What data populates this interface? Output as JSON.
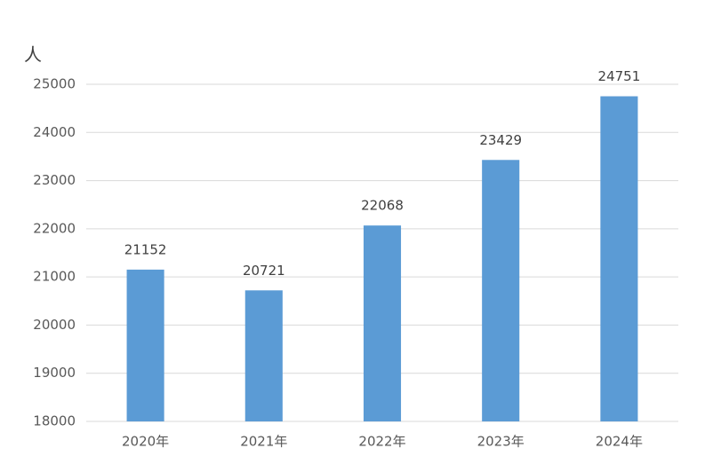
{
  "chart_data": {
    "type": "bar",
    "y_label": "人",
    "categories": [
      "2020年",
      "2021年",
      "2022年",
      "2023年",
      "2024年"
    ],
    "values": [
      21152,
      20721,
      22068,
      23429,
      24751
    ],
    "color": "#5b9bd5",
    "ylim": [
      18000,
      25000
    ],
    "yticks": [
      18000,
      19000,
      20000,
      21000,
      22000,
      23000,
      24000,
      25000
    ],
    "grid": true
  }
}
